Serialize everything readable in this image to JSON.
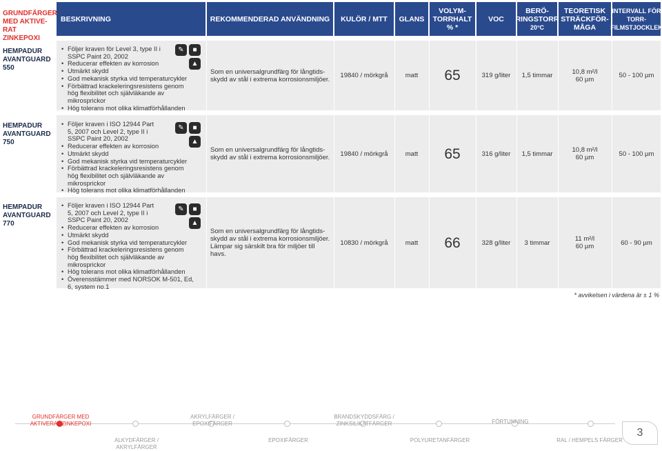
{
  "corner_title": "GRUNDFÄRGER MED AKTIVE- RAT ZINKEPOXI",
  "headers": {
    "beskrivning": "BESKRIVNING",
    "rekommenderad": "REKOMMENDERAD ANVÄNDNING",
    "kulor": "KULÖR / MTT",
    "glans": "GLANS",
    "volym": "VOLYM- TORRHALT % *",
    "voc": "VOC",
    "berorings_1": "BERÖ- RINGSTORR",
    "berorings_2": "20°C",
    "teoretisk": "TEORETISK STRÄCKFÖR- MÅGA",
    "intervall": "INTERVALL FÖR TORR- FILMSTJOCKLEK"
  },
  "rows": [
    {
      "name": "HEMPADUR AVANTGUARD 550",
      "features": [
        "Följer kraven för Level 3, type II i SSPC Paint 20, 2002",
        "Reducerar effekten av korrosion",
        "Utmärkt skydd",
        "God mekanisk styrka vid temperaturcykler",
        "Förbättrad krackeleringsresistens genom hög flexibilitet och självläkande av mikrosprickor",
        "Hög tolerans mot olika klimatförhållanden"
      ],
      "usage": "Som en universalgrundfärg för långtids- skydd av stål i extrema korrosionsmiljöer.",
      "color": "19840 / mörkgrå",
      "gloss": "matt",
      "volume": "65",
      "voc": "319 g/liter",
      "dry": "1,5 timmar",
      "spread_1": "10,8 m²/l",
      "spread_2": "60 µm",
      "interval": "50 - 100 µm"
    },
    {
      "name": "HEMPADUR AVANTGUARD 750",
      "features": [
        "Följer kraven i ISO 12944 Part 5, 2007 och Level 2, type II i SSPC Paint 20, 2002",
        "Reducerar effekten av korrosion",
        "Utmärkt skydd",
        "God mekanisk styrka vid temperaturcykler",
        "Förbättrad krackeleringsresistens genom hög flexibilitet och självläkande av mikrosprickor",
        "Hög tolerans mot olika klimatförhållanden"
      ],
      "usage": "Som en universalgrundfärg för långtids- skydd av stål i extrema korrosionsmiljöer.",
      "color": "19840 / mörkgrå",
      "gloss": "matt",
      "volume": "65",
      "voc": "316 g/liter",
      "dry": "1,5 timmar",
      "spread_1": "10,8 m²/l",
      "spread_2": "60 µm",
      "interval": "50 - 100 µm"
    },
    {
      "name": "HEMPADUR AVANTGUARD 770",
      "features": [
        "Följer kraven i ISO 12944 Part 5, 2007 och Level 2, type II i SSPC Paint 20, 2002",
        "Reducerar effekten av korrosion",
        "Utmärkt skydd",
        "God mekanisk styrka vid temperaturcykler",
        "Förbättrad krackeleringsresistens genom hög flexibilitet och självläkande av mikrosprickor",
        "Hög tolerans mot olika klimatförhållanden",
        "Överensstämmer med NORSOK M-501, Ed, 6, system no.1"
      ],
      "usage": "Som en universalgrundfärg för långtids- skydd av stål i extrema korrosionsmiljöer. Lämpar sig särskilt bra för miljöer till havs.",
      "color": "10830 / mörkgrå",
      "gloss": "matt",
      "volume": "66",
      "voc": "328 g/liter",
      "dry": "3 timmar",
      "spread_1": "11 m²/l",
      "spread_2": "60 µm",
      "interval": "60 - 90 µm"
    }
  ],
  "footnote": "* avvikelsen i värdena är ± 1 %",
  "footer": {
    "grund": "GRUNDFÄRGER MED AKTIVERAT ZINKEPOXI",
    "alkyd": "ALKYDFÄRGER / AKRYLFÄRGER",
    "akryl": "AKRYLFÄRGER / EPOXIFÄRGER",
    "epoxi": "EPOXIFÄRGER",
    "brand": "BRANDSKYDDSFÄRG / ZINKSILIKATFÄRGER",
    "polyu": "POLYURETANFÄRGER",
    "fortunning": "FÖRTUNNING",
    "ral": "RAL / HEMPELS FÄRGER",
    "page": "3"
  },
  "icons": [
    "spray-gun-icon",
    "roller-icon",
    "brush-icon"
  ]
}
